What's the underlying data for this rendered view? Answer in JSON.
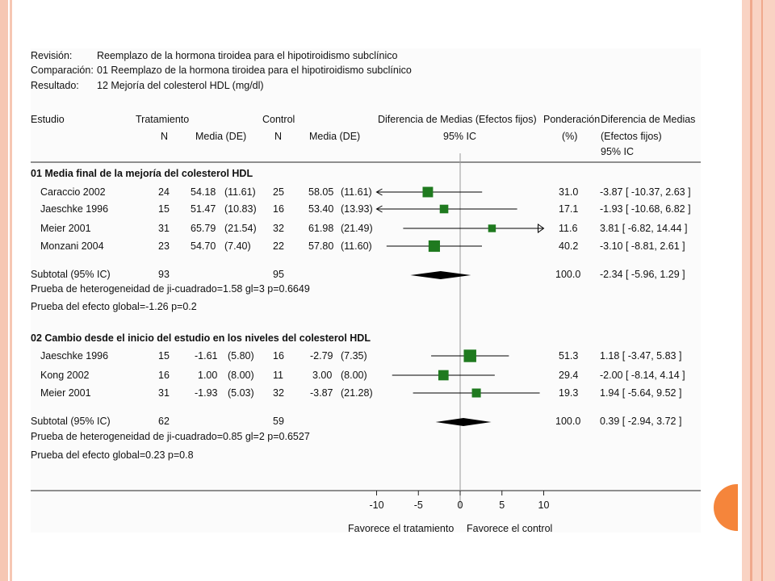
{
  "header": {
    "revision_label": "Revisión:",
    "revision_value": "Reemplazo de la hormona tiroidea para el hipotiroidismo subclínico",
    "comparison_label": "Comparación:",
    "comparison_value": "01 Reemplazo de la hormona tiroidea para el hipotiroidismo subclínico",
    "result_label": "Resultado:",
    "result_value": "12 Mejoría del colesterol HDL (mg/dl)"
  },
  "columns": {
    "study": "Estudio",
    "treatment": "Tratamiento",
    "n": "N",
    "mean_sd": "Media (DE)",
    "control": "Control",
    "effect_head": "Diferencia de Medias  (Efectos fijos)",
    "ci_head": "95% IC",
    "weight_head": "Ponderación",
    "weight_unit": "(%)",
    "md_head": "Diferencia de Medias",
    "md_sub": "(Efectos fijos)",
    "md_ci": "95% IC"
  },
  "chart_data": {
    "type": "forest",
    "xlim": [
      -10,
      10
    ],
    "xticks": [
      "-10",
      "-5",
      "0",
      "5",
      "10"
    ],
    "favours_left": "Favorece el tratamiento",
    "favours_right": "Favorece el control",
    "groups": [
      {
        "title": "01 Media final de la mejoría del colesterol HDL",
        "studies": [
          {
            "name": "Caraccio 2002",
            "tn": "24",
            "tmean": "54.18",
            "tsd": "(11.61)",
            "cn": "25",
            "cmean": "58.05",
            "csd": "(11.61)",
            "weight": "31.0",
            "md_text": "-3.87 [ -10.37, 2.63 ]",
            "md": -3.87,
            "lo": -10.37,
            "hi": 2.63
          },
          {
            "name": "Jaeschke 1996",
            "tn": "15",
            "tmean": "51.47",
            "tsd": "(10.83)",
            "cn": "16",
            "cmean": "53.40",
            "csd": "(13.93)",
            "weight": "17.1",
            "md_text": "-1.93 [ -10.68, 6.82 ]",
            "md": -1.93,
            "lo": -10.68,
            "hi": 6.82
          },
          {
            "name": "Meier 2001",
            "tn": "31",
            "tmean": "65.79",
            "tsd": "(21.54)",
            "cn": "32",
            "cmean": "61.98",
            "csd": "(21.49)",
            "weight": "11.6",
            "md_text": "3.81 [ -6.82, 14.44 ]",
            "md": 3.81,
            "lo": -6.82,
            "hi": 14.44
          },
          {
            "name": "Monzani 2004",
            "tn": "23",
            "tmean": "54.70",
            "tsd": "(7.40)",
            "cn": "22",
            "cmean": "57.80",
            "csd": "(11.60)",
            "weight": "40.2",
            "md_text": "-3.10 [ -8.81, 2.61 ]",
            "md": -3.1,
            "lo": -8.81,
            "hi": 2.61
          }
        ],
        "subtotal": {
          "label": "Subtotal (95% IC)",
          "tn": "93",
          "cn": "95",
          "weight": "100.0",
          "md_text": "-2.34 [ -5.96, 1.29 ]",
          "md": -2.34,
          "lo": -5.96,
          "hi": 1.29
        },
        "heterogeneity": "Prueba de heterogeneidad de ji-cuadrado=1.58 gl=3 p=0.6649",
        "overall": "Prueba del efecto global=-1.26 p=0.2"
      },
      {
        "title": "02 Cambio desde el inicio del estudio en los niveles del colesterol HDL",
        "studies": [
          {
            "name": "Jaeschke 1996",
            "tn": "15",
            "tmean": "-1.61",
            "tsd": "(5.80)",
            "cn": "16",
            "cmean": "-2.79",
            "csd": "(7.35)",
            "weight": "51.3",
            "md_text": "1.18 [ -3.47, 5.83 ]",
            "md": 1.18,
            "lo": -3.47,
            "hi": 5.83
          },
          {
            "name": "Kong 2002",
            "tn": "16",
            "tmean": "1.00",
            "tsd": "(8.00)",
            "cn": "11",
            "cmean": "3.00",
            "csd": "(8.00)",
            "weight": "29.4",
            "md_text": "-2.00 [ -8.14, 4.14 ]",
            "md": -2.0,
            "lo": -8.14,
            "hi": 4.14
          },
          {
            "name": "Meier 2001",
            "tn": "31",
            "tmean": "-1.93",
            "tsd": "(5.03)",
            "cn": "32",
            "cmean": "-3.87",
            "csd": "(21.28)",
            "weight": "19.3",
            "md_text": "1.94 [ -5.64, 9.52 ]",
            "md": 1.94,
            "lo": -5.64,
            "hi": 9.52
          }
        ],
        "subtotal": {
          "label": "Subtotal (95% IC)",
          "tn": "62",
          "cn": "59",
          "weight": "100.0",
          "md_text": "0.39 [ -2.94, 3.72 ]",
          "md": 0.39,
          "lo": -2.94,
          "hi": 3.72
        },
        "heterogeneity": "Prueba de heterogeneidad de ji-cuadrado=0.85 gl=2 p=0.6527",
        "overall": "Prueba del efecto global=0.23 p=0.8"
      }
    ]
  },
  "colors": {
    "box": "#1f7a1f",
    "diamond": "#000000",
    "accent": "#f5853b",
    "border": "#f6c7b3"
  }
}
